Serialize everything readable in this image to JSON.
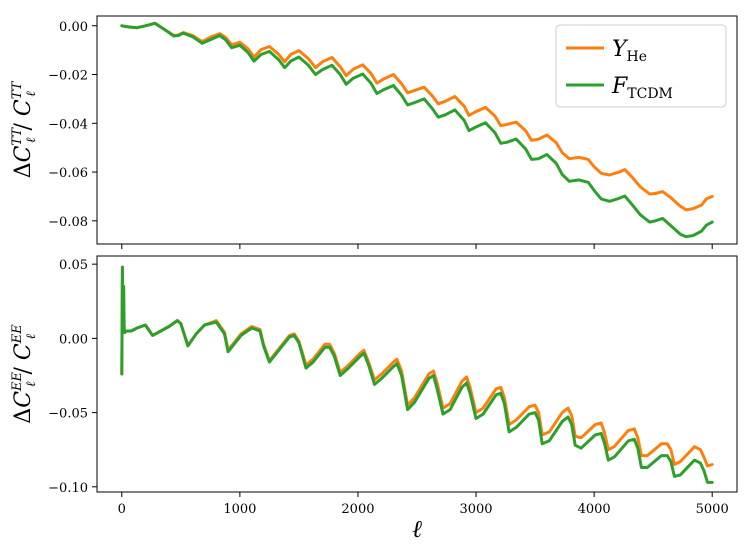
{
  "chart_data": [
    {
      "type": "line",
      "ylabel": "ΔC_ℓ^TT / C_ℓ^TT",
      "xlim": [
        -210,
        5210
      ],
      "ylim": [
        -0.0895,
        0.004
      ],
      "xticks": [
        0,
        1000,
        2000,
        3000,
        4000,
        5000
      ],
      "yticks": [
        0.0,
        -0.02,
        -0.04,
        -0.06,
        -0.08
      ],
      "ytick_labels": [
        "0.00",
        "−0.02",
        "−0.04",
        "−0.06",
        "−0.08"
      ],
      "legend": {
        "placement": "top-right"
      },
      "series": [
        {
          "name": "Y_He",
          "color": "#ff7f0e",
          "x": [
            0,
            60,
            130,
            200,
            280,
            360,
            440,
            480,
            520,
            600,
            680,
            760,
            830,
            880,
            930,
            1000,
            1070,
            1120,
            1180,
            1250,
            1330,
            1380,
            1430,
            1500,
            1580,
            1640,
            1700,
            1780,
            1850,
            1900,
            1960,
            2040,
            2110,
            2160,
            2220,
            2300,
            2370,
            2420,
            2480,
            2560,
            2630,
            2680,
            2740,
            2820,
            2900,
            2940,
            3000,
            3080,
            3160,
            3210,
            3260,
            3340,
            3420,
            3470,
            3530,
            3600,
            3680,
            3730,
            3790,
            3870,
            3950,
            4000,
            4060,
            4130,
            4210,
            4260,
            4320,
            4390,
            4470,
            4520,
            4580,
            4650,
            4730,
            4780,
            4840,
            4910,
            4950,
            5000
          ],
          "values": [
            0.0,
            -0.0005,
            -0.0008,
            0.0,
            0.001,
            -0.0015,
            -0.004,
            -0.0038,
            -0.0028,
            -0.004,
            -0.0065,
            -0.0045,
            -0.0032,
            -0.0048,
            -0.0078,
            -0.0068,
            -0.0095,
            -0.0128,
            -0.0098,
            -0.0085,
            -0.0118,
            -0.0148,
            -0.0118,
            -0.0102,
            -0.0135,
            -0.0172,
            -0.0148,
            -0.013,
            -0.0168,
            -0.0205,
            -0.0178,
            -0.016,
            -0.0195,
            -0.0235,
            -0.0218,
            -0.02,
            -0.0238,
            -0.0275,
            -0.0265,
            -0.0252,
            -0.0288,
            -0.032,
            -0.031,
            -0.029,
            -0.033,
            -0.0368,
            -0.0352,
            -0.0335,
            -0.037,
            -0.041,
            -0.0405,
            -0.0395,
            -0.043,
            -0.047,
            -0.0465,
            -0.0448,
            -0.048,
            -0.052,
            -0.0545,
            -0.054,
            -0.0548,
            -0.0578,
            -0.0605,
            -0.0612,
            -0.06,
            -0.059,
            -0.062,
            -0.066,
            -0.069,
            -0.0688,
            -0.068,
            -0.0705,
            -0.074,
            -0.0755,
            -0.075,
            -0.0735,
            -0.071,
            -0.07
          ]
        },
        {
          "name": "F_TCDM",
          "color": "#2ca02c",
          "x": [
            0,
            60,
            130,
            200,
            280,
            360,
            440,
            480,
            520,
            600,
            680,
            760,
            830,
            880,
            930,
            1000,
            1070,
            1120,
            1180,
            1250,
            1330,
            1380,
            1430,
            1500,
            1580,
            1640,
            1700,
            1780,
            1850,
            1900,
            1960,
            2040,
            2110,
            2160,
            2220,
            2300,
            2370,
            2420,
            2480,
            2560,
            2630,
            2680,
            2740,
            2820,
            2900,
            2940,
            3000,
            3080,
            3160,
            3210,
            3260,
            3340,
            3420,
            3470,
            3530,
            3600,
            3680,
            3730,
            3790,
            3870,
            3950,
            4000,
            4060,
            4130,
            4210,
            4260,
            4320,
            4390,
            4470,
            4520,
            4580,
            4650,
            4730,
            4780,
            4840,
            4910,
            4950,
            5000
          ],
          "values": [
            0.0,
            -0.0005,
            -0.0008,
            0.0,
            0.001,
            -0.0015,
            -0.0042,
            -0.004,
            -0.003,
            -0.0045,
            -0.0072,
            -0.0055,
            -0.004,
            -0.0058,
            -0.009,
            -0.008,
            -0.011,
            -0.0145,
            -0.0118,
            -0.0105,
            -0.014,
            -0.0172,
            -0.0145,
            -0.0128,
            -0.0162,
            -0.02,
            -0.018,
            -0.0162,
            -0.02,
            -0.024,
            -0.0215,
            -0.0198,
            -0.0235,
            -0.0278,
            -0.0262,
            -0.0245,
            -0.0285,
            -0.0325,
            -0.0315,
            -0.03,
            -0.034,
            -0.0375,
            -0.0365,
            -0.0345,
            -0.0388,
            -0.043,
            -0.0415,
            -0.0398,
            -0.0438,
            -0.0482,
            -0.0478,
            -0.0465,
            -0.0505,
            -0.0548,
            -0.0545,
            -0.0528,
            -0.0565,
            -0.061,
            -0.0638,
            -0.0632,
            -0.0642,
            -0.0675,
            -0.071,
            -0.072,
            -0.0708,
            -0.0698,
            -0.0732,
            -0.0775,
            -0.0805,
            -0.08,
            -0.079,
            -0.082,
            -0.0855,
            -0.0865,
            -0.086,
            -0.0842,
            -0.0818,
            -0.0805
          ]
        }
      ]
    },
    {
      "type": "line",
      "xlabel": "ℓ",
      "ylabel": "ΔC_ℓ^EE / C_ℓ^EE",
      "xlim": [
        -210,
        5210
      ],
      "ylim": [
        -0.1035,
        0.0555
      ],
      "xticks": [
        0,
        1000,
        2000,
        3000,
        4000,
        5000
      ],
      "yticks": [
        0.05,
        0.0,
        -0.05,
        -0.1
      ],
      "ytick_labels": [
        "0.05",
        "0.00",
        "−0.05",
        "−0.10"
      ],
      "series": [
        {
          "name": "Y_He",
          "color": "#ff7f0e",
          "x": [
            0,
            5,
            10,
            15,
            20,
            25,
            40,
            80,
            130,
            200,
            260,
            330,
            400,
            470,
            500,
            560,
            630,
            700,
            800,
            870,
            900,
            950,
            1010,
            1100,
            1170,
            1200,
            1250,
            1320,
            1420,
            1460,
            1500,
            1560,
            1620,
            1720,
            1760,
            1800,
            1850,
            1920,
            2020,
            2050,
            2090,
            2140,
            2200,
            2300,
            2330,
            2370,
            2420,
            2480,
            2600,
            2640,
            2670,
            2720,
            2780,
            2880,
            2920,
            2950,
            3000,
            3060,
            3170,
            3210,
            3240,
            3280,
            3340,
            3450,
            3500,
            3530,
            3560,
            3620,
            3730,
            3780,
            3810,
            3840,
            3890,
            4010,
            4060,
            4090,
            4120,
            4170,
            4290,
            4340,
            4370,
            4400,
            4450,
            4570,
            4620,
            4650,
            4680,
            4730,
            4850,
            4900,
            4930,
            4960,
            5000
          ],
          "values": [
            -0.024,
            0.048,
            0.005,
            0.035,
            0.004,
            0.004,
            0.005,
            0.005,
            0.007,
            0.009,
            0.002,
            0.005,
            0.008,
            0.012,
            0.01,
            -0.005,
            0.003,
            0.009,
            0.012,
            0.004,
            -0.008,
            -0.003,
            0.003,
            0.008,
            0.006,
            -0.004,
            -0.015,
            -0.008,
            0.002,
            0.003,
            -0.002,
            -0.018,
            -0.014,
            -0.004,
            -0.004,
            -0.01,
            -0.023,
            -0.018,
            -0.01,
            -0.008,
            -0.016,
            -0.028,
            -0.024,
            -0.016,
            -0.014,
            -0.022,
            -0.045,
            -0.04,
            -0.024,
            -0.022,
            -0.03,
            -0.047,
            -0.044,
            -0.029,
            -0.026,
            -0.033,
            -0.05,
            -0.047,
            -0.034,
            -0.033,
            -0.04,
            -0.058,
            -0.055,
            -0.046,
            -0.045,
            -0.05,
            -0.065,
            -0.063,
            -0.05,
            -0.047,
            -0.052,
            -0.066,
            -0.067,
            -0.058,
            -0.057,
            -0.064,
            -0.075,
            -0.073,
            -0.062,
            -0.061,
            -0.067,
            -0.079,
            -0.079,
            -0.071,
            -0.071,
            -0.075,
            -0.085,
            -0.083,
            -0.073,
            -0.075,
            -0.08,
            -0.086,
            -0.085
          ]
        },
        {
          "name": "F_TCDM",
          "color": "#2ca02c",
          "x": [
            0,
            5,
            10,
            15,
            20,
            25,
            40,
            80,
            130,
            200,
            260,
            330,
            400,
            470,
            500,
            560,
            630,
            700,
            800,
            870,
            900,
            950,
            1010,
            1100,
            1170,
            1200,
            1250,
            1320,
            1420,
            1460,
            1500,
            1560,
            1620,
            1720,
            1760,
            1800,
            1850,
            1920,
            2020,
            2050,
            2090,
            2140,
            2200,
            2300,
            2330,
            2370,
            2420,
            2480,
            2600,
            2640,
            2670,
            2720,
            2780,
            2880,
            2920,
            2950,
            3000,
            3060,
            3170,
            3210,
            3240,
            3280,
            3340,
            3450,
            3500,
            3530,
            3560,
            3620,
            3730,
            3780,
            3810,
            3840,
            3890,
            4010,
            4060,
            4090,
            4120,
            4170,
            4290,
            4340,
            4370,
            4400,
            4450,
            4570,
            4620,
            4650,
            4680,
            4730,
            4850,
            4900,
            4930,
            4960,
            5000
          ],
          "values": [
            -0.024,
            0.048,
            0.005,
            0.035,
            0.004,
            0.004,
            0.005,
            0.005,
            0.007,
            0.009,
            0.002,
            0.005,
            0.008,
            0.012,
            0.01,
            -0.005,
            0.003,
            0.009,
            0.011,
            0.003,
            -0.009,
            -0.004,
            0.002,
            0.007,
            0.005,
            -0.005,
            -0.016,
            -0.009,
            0.001,
            0.002,
            -0.003,
            -0.02,
            -0.016,
            -0.006,
            -0.006,
            -0.012,
            -0.025,
            -0.02,
            -0.012,
            -0.01,
            -0.018,
            -0.031,
            -0.027,
            -0.019,
            -0.017,
            -0.025,
            -0.048,
            -0.043,
            -0.027,
            -0.025,
            -0.034,
            -0.051,
            -0.048,
            -0.033,
            -0.03,
            -0.037,
            -0.054,
            -0.051,
            -0.038,
            -0.037,
            -0.044,
            -0.063,
            -0.06,
            -0.051,
            -0.05,
            -0.055,
            -0.071,
            -0.069,
            -0.056,
            -0.053,
            -0.058,
            -0.072,
            -0.074,
            -0.065,
            -0.064,
            -0.071,
            -0.082,
            -0.08,
            -0.069,
            -0.068,
            -0.074,
            -0.087,
            -0.087,
            -0.079,
            -0.079,
            -0.083,
            -0.093,
            -0.092,
            -0.082,
            -0.084,
            -0.089,
            -0.097,
            -0.097
          ]
        }
      ]
    }
  ]
}
